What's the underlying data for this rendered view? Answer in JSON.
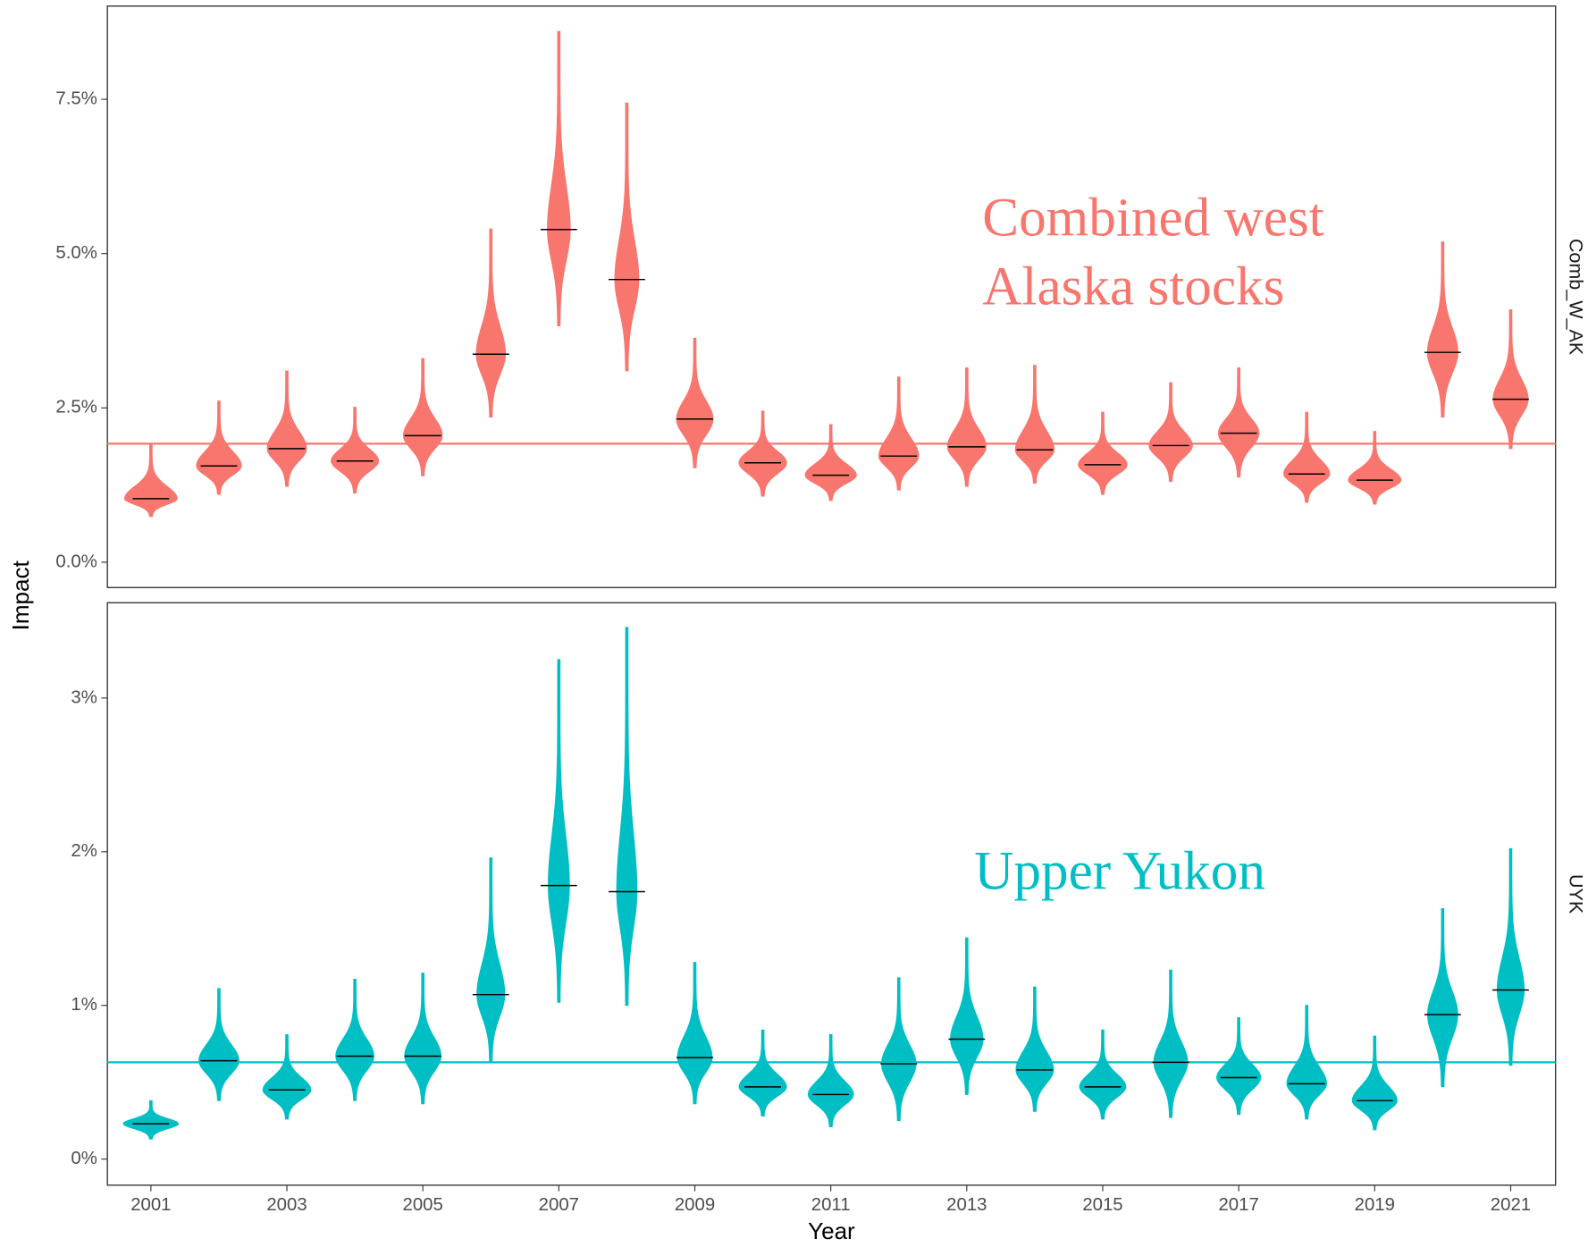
{
  "chart_data": [
    {
      "type": "violin",
      "panel": "Comb_W_AK",
      "color": "#f8766d",
      "y_label": "Impact",
      "annotation": [
        "Combined west",
        "Alaska stocks"
      ],
      "x": [
        2001,
        2002,
        2003,
        2004,
        2005,
        2006,
        2007,
        2008,
        2009,
        2010,
        2011,
        2012,
        2013,
        2014,
        2015,
        2016,
        2017,
        2018,
        2019,
        2020,
        2021
      ],
      "medians": [
        1.03,
        1.56,
        1.84,
        1.64,
        2.05,
        3.37,
        5.39,
        4.58,
        2.32,
        1.61,
        1.41,
        1.72,
        1.87,
        1.82,
        1.58,
        1.89,
        2.09,
        1.43,
        1.33,
        3.4,
        2.64
      ],
      "mins": [
        0.74,
        1.1,
        1.23,
        1.12,
        1.4,
        2.35,
        3.83,
        3.1,
        1.53,
        1.07,
        1.0,
        1.17,
        1.23,
        1.28,
        1.1,
        1.31,
        1.38,
        0.97,
        0.94,
        2.35,
        1.84
      ],
      "maxs": [
        1.92,
        2.61,
        3.1,
        2.51,
        3.3,
        5.4,
        8.6,
        7.44,
        3.63,
        2.45,
        2.23,
        3.0,
        3.15,
        3.19,
        2.43,
        2.91,
        3.15,
        2.43,
        2.12,
        5.19,
        4.09
      ],
      "reference_line": 1.92,
      "xlim": [
        2000.36,
        2021.66
      ],
      "xticks": [
        2001,
        2003,
        2005,
        2007,
        2009,
        2011,
        2013,
        2015,
        2017,
        2019,
        2021
      ],
      "ylim": [
        -0.41,
        9.01
      ],
      "yticks": [
        {
          "value": 0,
          "label": "0.0%"
        },
        {
          "value": 2.5,
          "label": "2.5%"
        },
        {
          "value": 5,
          "label": "5.0%"
        },
        {
          "value": 7.5,
          "label": "7.5%"
        }
      ]
    },
    {
      "type": "violin",
      "panel": "UYK",
      "color": "#00bfc4",
      "x_label": "Year",
      "annotation": [
        "Upper Yukon"
      ],
      "x": [
        2001,
        2002,
        2003,
        2004,
        2005,
        2006,
        2007,
        2008,
        2009,
        2010,
        2011,
        2012,
        2013,
        2014,
        2015,
        2016,
        2017,
        2018,
        2019,
        2020,
        2021
      ],
      "medians": [
        0.23,
        0.64,
        0.45,
        0.67,
        0.67,
        1.07,
        1.78,
        1.74,
        0.66,
        0.47,
        0.42,
        0.62,
        0.78,
        0.58,
        0.47,
        0.63,
        0.53,
        0.49,
        0.38,
        0.94,
        1.1
      ],
      "mins": [
        0.13,
        0.38,
        0.26,
        0.38,
        0.36,
        0.63,
        1.02,
        1.0,
        0.36,
        0.28,
        0.21,
        0.25,
        0.42,
        0.31,
        0.26,
        0.27,
        0.29,
        0.26,
        0.19,
        0.47,
        0.61
      ],
      "maxs": [
        0.38,
        1.11,
        0.81,
        1.17,
        1.21,
        1.96,
        3.25,
        3.46,
        1.28,
        0.84,
        0.81,
        1.18,
        1.44,
        1.12,
        0.84,
        1.23,
        0.92,
        1.0,
        0.8,
        1.63,
        2.02
      ],
      "reference_line": 0.63,
      "xlim": [
        2000.36,
        2021.66
      ],
      "xticks": [
        2001,
        2003,
        2005,
        2007,
        2009,
        2011,
        2013,
        2015,
        2017,
        2019,
        2021
      ],
      "ylim": [
        -0.17,
        3.62
      ],
      "yticks": [
        {
          "value": 0,
          "label": "0%"
        },
        {
          "value": 1,
          "label": "1%"
        },
        {
          "value": 2,
          "label": "2%"
        },
        {
          "value": 3,
          "label": "3%"
        }
      ]
    }
  ]
}
